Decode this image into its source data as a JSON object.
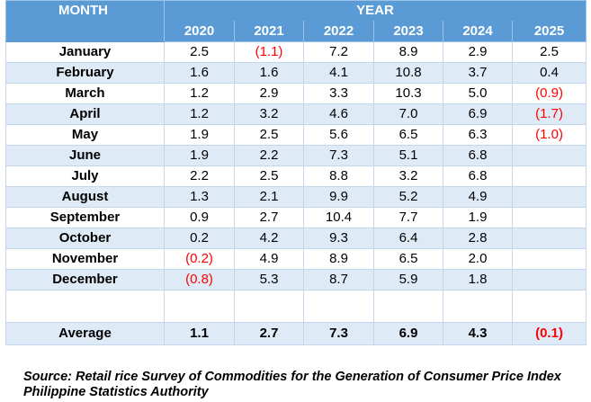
{
  "header": {
    "month_label": "MONTH",
    "year_label": "YEAR",
    "years": [
      "2020",
      "2021",
      "2022",
      "2023",
      "2024",
      "2025"
    ]
  },
  "rows": [
    {
      "month": "January",
      "values": [
        "2.5",
        "(1.1)",
        "7.2",
        "8.9",
        "2.9",
        "2.5"
      ]
    },
    {
      "month": "February",
      "values": [
        "1.6",
        "1.6",
        "4.1",
        "10.8",
        "3.7",
        "0.4"
      ]
    },
    {
      "month": "March",
      "values": [
        "1.2",
        "2.9",
        "3.3",
        "10.3",
        "5.0",
        "(0.9)"
      ]
    },
    {
      "month": "April",
      "values": [
        "1.2",
        "3.2",
        "4.6",
        "7.0",
        "6.9",
        "(1.7)"
      ]
    },
    {
      "month": "May",
      "values": [
        "1.9",
        "2.5",
        "5.6",
        "6.5",
        "6.3",
        "(1.0)"
      ]
    },
    {
      "month": "June",
      "values": [
        "1.9",
        "2.2",
        "7.3",
        "5.1",
        "6.8",
        ""
      ]
    },
    {
      "month": "July",
      "values": [
        "2.2",
        "2.5",
        "8.8",
        "3.2",
        "6.8",
        ""
      ]
    },
    {
      "month": "August",
      "values": [
        "1.3",
        "2.1",
        "9.9",
        "5.2",
        "4.9",
        ""
      ]
    },
    {
      "month": "September",
      "values": [
        "0.9",
        "2.7",
        "10.4",
        "7.7",
        "1.9",
        ""
      ]
    },
    {
      "month": "October",
      "values": [
        "0.2",
        "4.2",
        "9.3",
        "6.4",
        "2.8",
        ""
      ]
    },
    {
      "month": "November",
      "values": [
        "(0.2)",
        "4.9",
        "8.9",
        "6.5",
        "2.0",
        ""
      ]
    },
    {
      "month": "December",
      "values": [
        "(0.8)",
        "5.3",
        "8.7",
        "5.9",
        "1.8",
        ""
      ]
    }
  ],
  "average": {
    "label": "Average",
    "values": [
      "1.1",
      "2.7",
      "7.3",
      "6.9",
      "4.3",
      "(0.1)"
    ]
  },
  "source": "Source: Retail rice Survey of Commodities for the Generation of Consumer Price Index Philippine Statistics Authority",
  "colors": {
    "header_bg": "#5b9bd5",
    "stripe_bg": "#deebf7",
    "negative_text": "#ff0000"
  }
}
